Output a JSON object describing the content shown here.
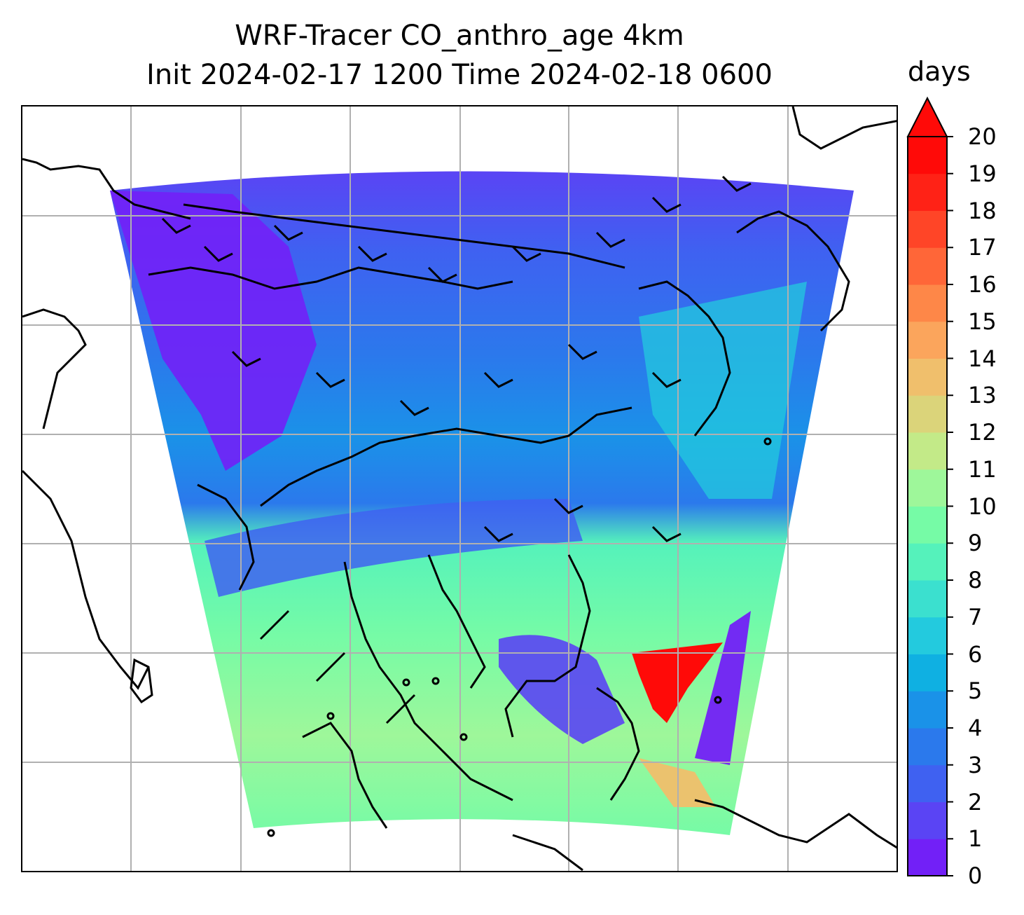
{
  "title": {
    "line1": "WRF-Tracer CO_anthro_age 4km",
    "line2": "Init 2024-02-17 1200 Time 2024-02-18 0600"
  },
  "map": {
    "variable": "CO_anthro_age",
    "resolution": "4km",
    "gridlines": true,
    "gridline_color": "#b0b0b0",
    "coastline_color": "#000000",
    "wind_barbs": true,
    "colormap": "rainbow"
  },
  "colorbar": {
    "unit": "days",
    "ticks": [
      "0",
      "1",
      "2",
      "3",
      "4",
      "5",
      "6",
      "7",
      "8",
      "9",
      "10",
      "11",
      "12",
      "13",
      "14",
      "15",
      "16",
      "17",
      "18",
      "19",
      "20"
    ],
    "extend": "max",
    "colors": [
      "#7220f7",
      "#5a44f4",
      "#3f61f1",
      "#2b79ec",
      "#1a92e8",
      "#0fb0e2",
      "#23cade",
      "#3be0cf",
      "#55f2bb",
      "#76fba6",
      "#9ef79a",
      "#c3ea88",
      "#dbd47a",
      "#f0bf6c",
      "#fba55c",
      "#fe8748",
      "#ff6638",
      "#ff4527",
      "#ff2216",
      "#ff0a08"
    ],
    "extend_color": "#ff0a08"
  }
}
